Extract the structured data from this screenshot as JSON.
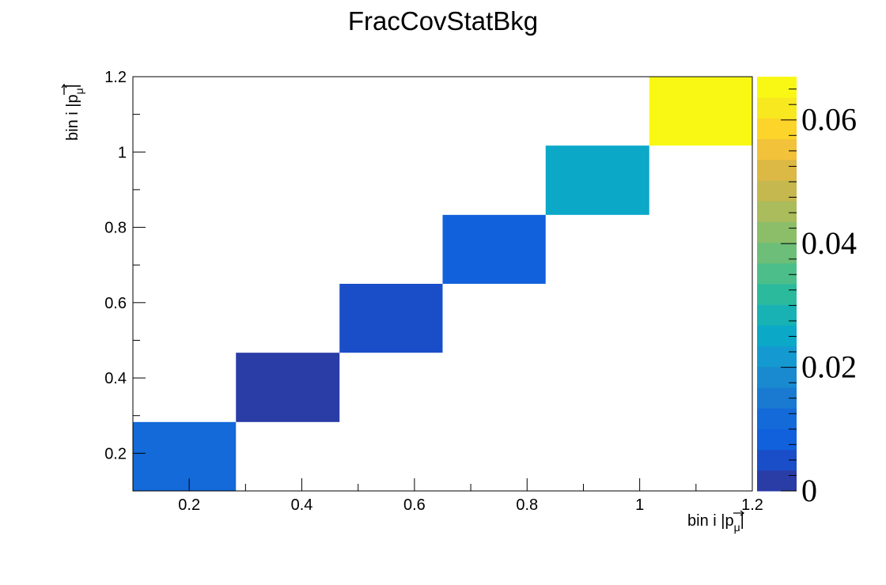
{
  "chart_data": {
    "type": "heatmap",
    "title": "FracCovStatBkg",
    "xlabel": "bin i |p_μ|",
    "ylabel": "bin i |p_μ|",
    "xlabel_parts": {
      "prefix": "bin i |",
      "var": "p",
      "sub": "μ",
      "suffix": "|"
    },
    "ylabel_parts": {
      "prefix": "bin i |",
      "var": "p",
      "sub": "μ",
      "suffix": "|"
    },
    "xlim": [
      0.1,
      1.2
    ],
    "ylim": [
      0.1,
      1.2
    ],
    "zlim": [
      0,
      0.067
    ],
    "x_ticks": [
      "0.2",
      "0.4",
      "0.6",
      "0.8",
      "1",
      "1.2"
    ],
    "x_tick_values": [
      0.2,
      0.4,
      0.6,
      0.8,
      1.0,
      1.2
    ],
    "y_ticks": [
      "0.2",
      "0.4",
      "0.6",
      "0.8",
      "1",
      "1.2"
    ],
    "y_tick_values": [
      0.2,
      0.4,
      0.6,
      0.8,
      1.0,
      1.2
    ],
    "z_ticks": [
      "0",
      "0.02",
      "0.04",
      "0.06"
    ],
    "z_tick_values": [
      0,
      0.02,
      0.04,
      0.06
    ],
    "bin_edges": [
      0.1,
      0.283,
      0.467,
      0.65,
      0.833,
      1.017,
      1.2
    ],
    "cells": [
      {
        "xbin": 0,
        "ybin": 0,
        "value": 0.012
      },
      {
        "xbin": 1,
        "ybin": 1,
        "value": 0.001
      },
      {
        "xbin": 2,
        "ybin": 2,
        "value": 0.006
      },
      {
        "xbin": 3,
        "ybin": 3,
        "value": 0.009
      },
      {
        "xbin": 4,
        "ybin": 4,
        "value": 0.026
      },
      {
        "xbin": 5,
        "ybin": 5,
        "value": 0.067
      }
    ],
    "palette": [
      "#2a3ca6",
      "#1a4ec8",
      "#1160dc",
      "#136ad8",
      "#1a7ad2",
      "#1a8ad0",
      "#149ad0",
      "#0ba8c8",
      "#18b2b4",
      "#2cba9c",
      "#4cbe8a",
      "#6cbe78",
      "#8cbe6a",
      "#aabc5c",
      "#c4b84e",
      "#dcb844",
      "#f2c23a",
      "#fcd42a",
      "#f8e820",
      "#f8f814"
    ]
  }
}
